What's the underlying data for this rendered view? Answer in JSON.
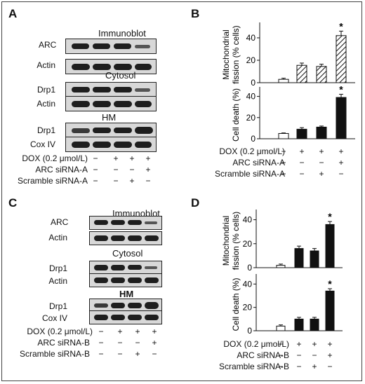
{
  "panels": {
    "A": {
      "label": "A",
      "header": "Immunoblot",
      "blot_rows": [
        "ARC",
        "Actin",
        "Drp1",
        "Actin",
        "Drp1",
        "Cox IV"
      ],
      "section_titles": [
        "Cytosol",
        "HM"
      ],
      "conditions": [
        {
          "label": "DOX (0.2 μmol/L)",
          "signs": [
            "−",
            "+",
            "+",
            "+"
          ]
        },
        {
          "label": "ARC siRNA-A",
          "signs": [
            "−",
            "−",
            "−",
            "+"
          ]
        },
        {
          "label": "Scramble siRNA-A",
          "signs": [
            "−",
            "−",
            "+",
            "−"
          ]
        }
      ]
    },
    "B": {
      "label": "B",
      "conditions": [
        {
          "label": "DOX (0.2 μmol/L)",
          "signs": [
            "−",
            "+",
            "+",
            "+"
          ]
        },
        {
          "label": "ARC siRNA-A",
          "signs": [
            "−",
            "−",
            "−",
            "+"
          ]
        },
        {
          "label": "Scramble siRNA-A",
          "signs": [
            "−",
            "−",
            "+",
            "−"
          ]
        }
      ]
    },
    "C": {
      "label": "C",
      "header": "Immunoblot",
      "blot_rows": [
        "ARC",
        "Actin",
        "Drp1",
        "Actin",
        "Drp1",
        "Cox IV"
      ],
      "section_titles": [
        "Cytosol",
        "HM"
      ],
      "conditions": [
        {
          "label": "DOX (0.2 μmol/L)",
          "signs": [
            "−",
            "+",
            "+",
            "+"
          ]
        },
        {
          "label": "ARC siRNA-B",
          "signs": [
            "−",
            "−",
            "−",
            "+"
          ]
        },
        {
          "label": "Scramble siRNA-B",
          "signs": [
            "−",
            "−",
            "+",
            "−"
          ]
        }
      ]
    },
    "D": {
      "label": "D",
      "conditions": [
        {
          "label": "DOX (0.2 μmol/L)",
          "signs": [
            "−",
            "+",
            "+",
            "+"
          ]
        },
        {
          "label": "ARC siRNA-B",
          "signs": [
            "−",
            "−",
            "−",
            "+"
          ]
        },
        {
          "label": "Scramble siRNA-B",
          "signs": [
            "−",
            "−",
            "+",
            "−"
          ]
        }
      ]
    }
  },
  "chart_data": [
    {
      "type": "bar",
      "panel": "B",
      "ylabel": "Mitochondrial fission (% cells)",
      "ylim": [
        0,
        50
      ],
      "yticks": [
        0,
        20,
        40
      ],
      "values": [
        3,
        15.5,
        14.5,
        42
      ],
      "errors": [
        1,
        2,
        2,
        4
      ],
      "fills": [
        "white",
        "hatched",
        "hatched",
        "hatched"
      ],
      "significant": [
        false,
        false,
        false,
        true
      ],
      "annotation": "*"
    },
    {
      "type": "bar",
      "panel": "B",
      "ylabel": "Cell death (%)",
      "ylim": [
        0,
        45
      ],
      "yticks": [
        0,
        20,
        40
      ],
      "values": [
        5,
        9,
        11,
        39
      ],
      "errors": [
        0.5,
        1.5,
        1,
        3
      ],
      "fills": [
        "white",
        "black",
        "black",
        "black"
      ],
      "significant": [
        false,
        false,
        false,
        true
      ],
      "annotation": "*"
    },
    {
      "type": "bar",
      "panel": "D",
      "ylabel": "Mitochondrial fission (% cells)",
      "ylim": [
        0,
        45
      ],
      "yticks": [
        0,
        20,
        40
      ],
      "values": [
        2,
        16,
        14,
        36
      ],
      "errors": [
        1,
        2,
        2,
        2.5
      ],
      "fills": [
        "white",
        "black",
        "black",
        "black"
      ],
      "significant": [
        false,
        false,
        false,
        true
      ],
      "annotation": "*"
    },
    {
      "type": "bar",
      "panel": "D",
      "ylabel": "Cell death (%)",
      "ylim": [
        0,
        45
      ],
      "yticks": [
        0,
        20,
        40
      ],
      "values": [
        4,
        10,
        10,
        34
      ],
      "errors": [
        1,
        1.5,
        1.5,
        2
      ],
      "fills": [
        "white",
        "black",
        "black",
        "black"
      ],
      "significant": [
        false,
        false,
        false,
        true
      ],
      "annotation": "*"
    }
  ]
}
